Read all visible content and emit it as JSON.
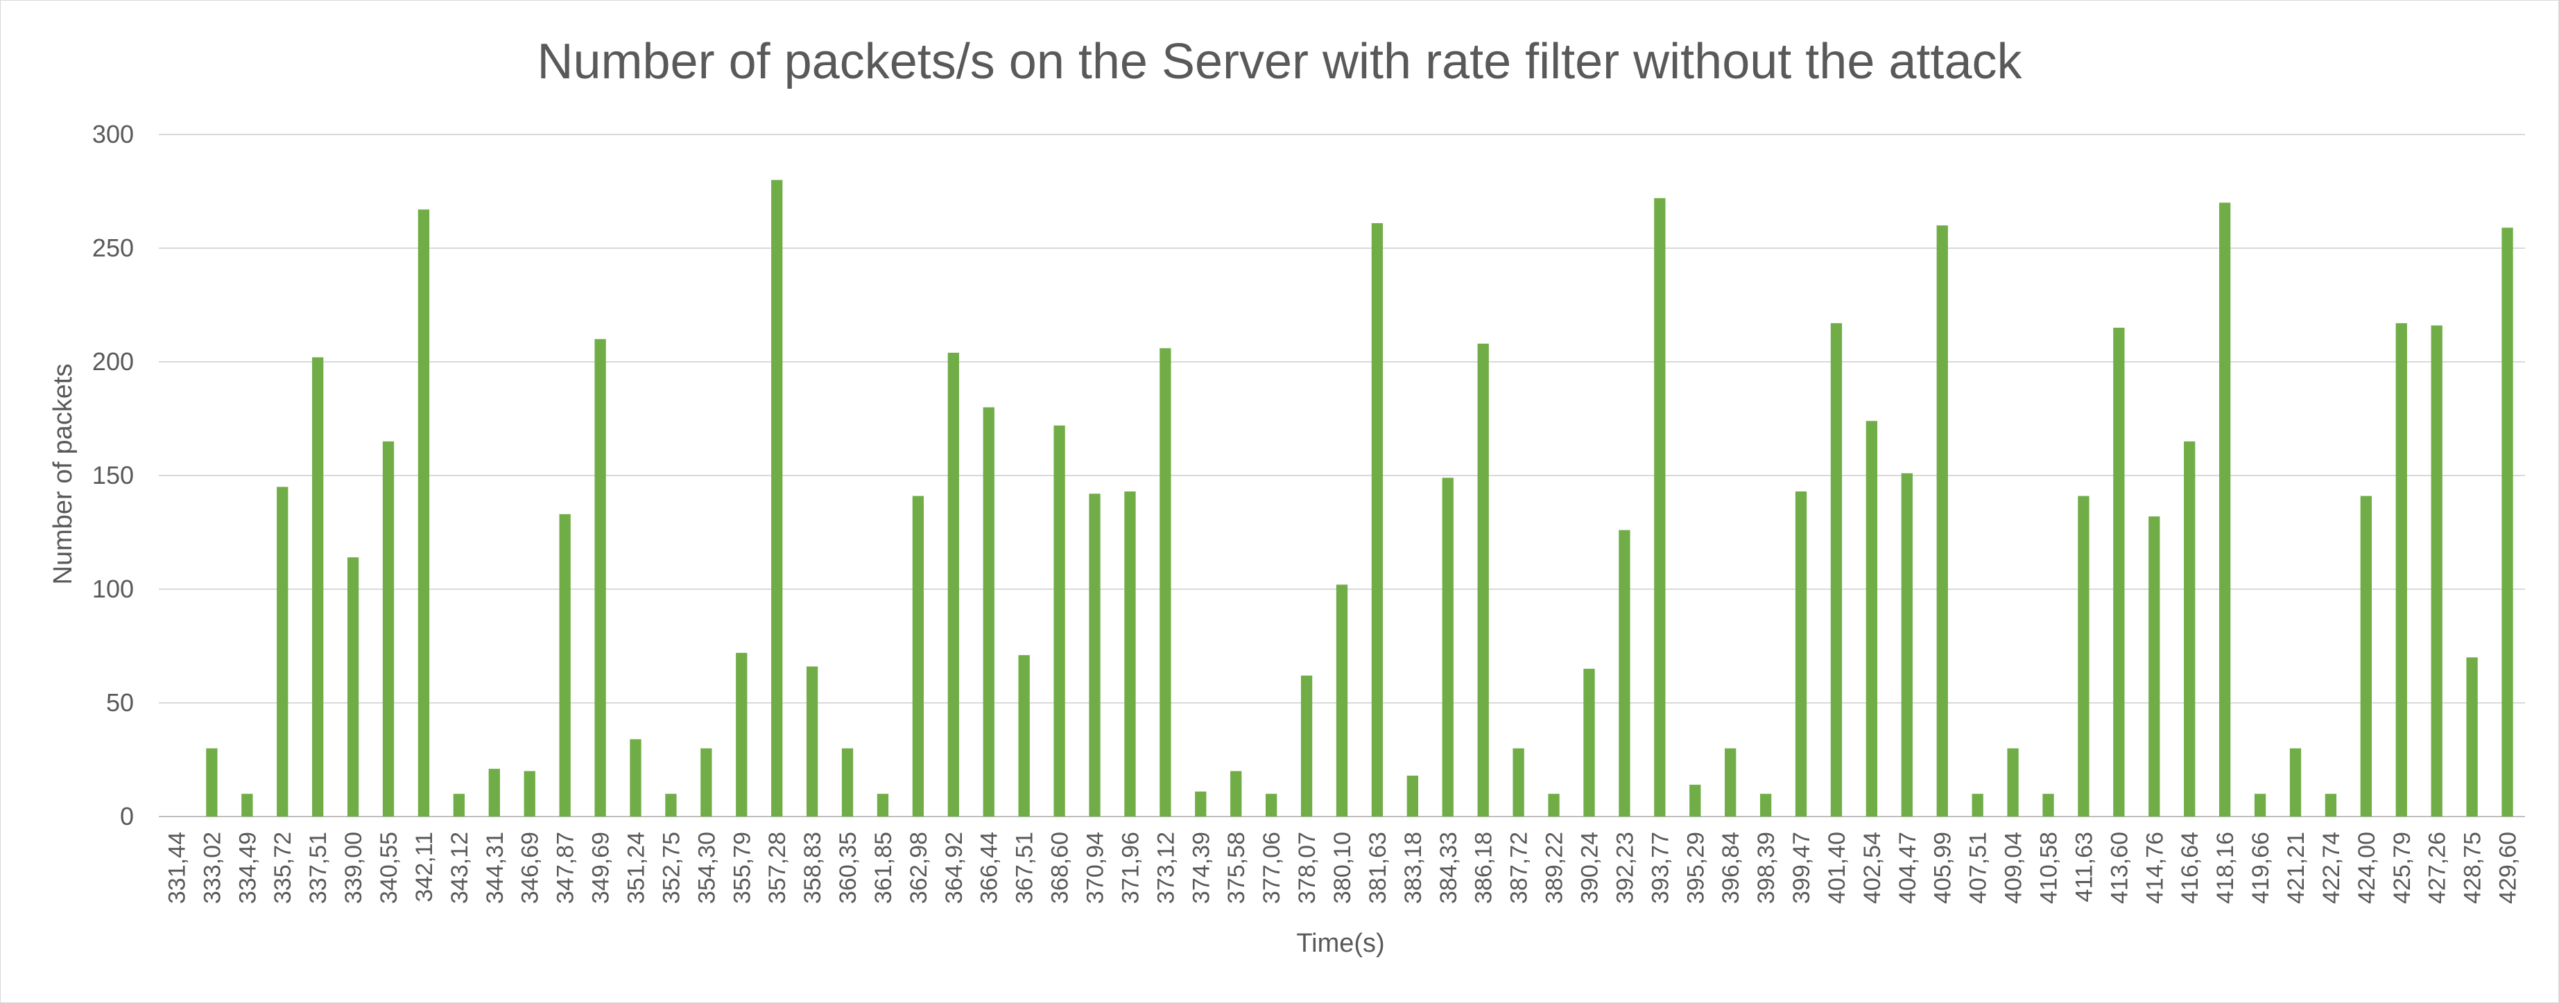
{
  "chart_data": {
    "type": "bar",
    "title": "Number of packets/s on the Server with rate filter without the attack",
    "xlabel": "Time(s)",
    "ylabel": "Number of packets",
    "ylim": [
      0,
      300
    ],
    "yticks": [
      0,
      50,
      100,
      150,
      200,
      250,
      300
    ],
    "grid": true,
    "legend": "none",
    "bar_color": "#70ad47",
    "categories": [
      "331,44",
      "333,02",
      "334,49",
      "335,72",
      "337,51",
      "339,00",
      "340,55",
      "342,11",
      "343,12",
      "344,31",
      "346,69",
      "347,87",
      "349,69",
      "351,24",
      "352,75",
      "354,30",
      "355,79",
      "357,28",
      "358,83",
      "360,35",
      "361,85",
      "362,98",
      "364,92",
      "366,44",
      "367,51",
      "368,60",
      "370,94",
      "371,96",
      "373,12",
      "374,39",
      "375,58",
      "377,06",
      "378,07",
      "380,10",
      "381,63",
      "383,18",
      "384,33",
      "386,18",
      "387,72",
      "389,22",
      "390,24",
      "392,23",
      "393,77",
      "395,29",
      "396,84",
      "398,39",
      "399,47",
      "401,40",
      "402,54",
      "404,47",
      "405,99",
      "407,51",
      "409,04",
      "410,58",
      "411,63",
      "413,60",
      "414,76",
      "416,64",
      "418,16",
      "419,66",
      "421,21",
      "422,74",
      "424,00",
      "425,79",
      "427,26",
      "428,75",
      "429,60"
    ],
    "values": [
      0,
      30,
      10,
      145,
      202,
      114,
      165,
      267,
      10,
      21,
      20,
      133,
      210,
      34,
      10,
      30,
      72,
      280,
      66,
      30,
      10,
      141,
      204,
      180,
      71,
      172,
      142,
      143,
      206,
      11,
      20,
      10,
      62,
      102,
      261,
      18,
      149,
      208,
      30,
      10,
      65,
      126,
      272,
      14,
      30,
      10,
      143,
      217,
      174,
      151,
      260,
      10,
      30,
      10,
      141,
      215,
      132,
      165,
      270,
      10,
      30,
      10,
      141,
      217,
      216,
      70,
      259
    ]
  }
}
